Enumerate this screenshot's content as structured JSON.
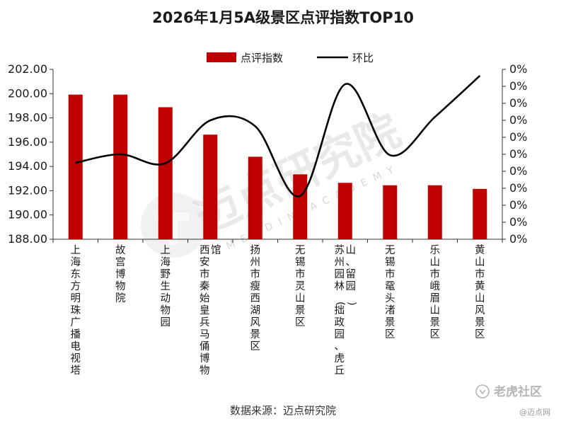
{
  "chart_data": {
    "type": "bar+line",
    "title": "2026年1月5A级景区点评指数TOP10",
    "categories": [
      "上海东方明珠广播电视塔",
      "故宫博物院",
      "上海野生动物园",
      "西安市秦始皇兵马俑博物馆",
      "扬州市瘦西湖风景区",
      "无锡市灵山景区",
      "苏州园林(拙政园、虎丘山、留园)",
      "无锡市鼋头渚景区",
      "乐山市峨眉山景区",
      "黄山市黄山风景区"
    ],
    "series": [
      {
        "name": "点评指数",
        "type": "bar",
        "axis": "left",
        "color": "#c00000",
        "values": [
          199.92,
          199.92,
          198.88,
          196.62,
          194.8,
          193.35,
          192.65,
          192.45,
          192.45,
          192.15
        ]
      },
      {
        "name": "环比",
        "type": "line",
        "axis": "right",
        "color": "#000000",
        "values": [
          -0.2,
          0.0,
          -0.21,
          0.8,
          0.66,
          -0.98,
          1.65,
          -0.02,
          0.88,
          1.85
        ]
      }
    ],
    "y_left": {
      "min": 188,
      "max": 202,
      "step": 2,
      "tick_labels": [
        "188.00",
        "190.00",
        "192.00",
        "194.00",
        "196.00",
        "198.00",
        "200.00",
        "202.00"
      ]
    },
    "y_right": {
      "min": -2,
      "max": 2,
      "tick_count": 11,
      "tick_label": "0%"
    },
    "legend": {
      "position": "top",
      "items": [
        "点评指数",
        "环比"
      ]
    },
    "grid": false,
    "source": "数据来源：迈点研究院"
  },
  "watermark": {
    "cn": "迈点研究院",
    "en": "MEADIN ACADEMY"
  },
  "brand": {
    "main": "老虎社区",
    "sub": "@迈点网"
  }
}
